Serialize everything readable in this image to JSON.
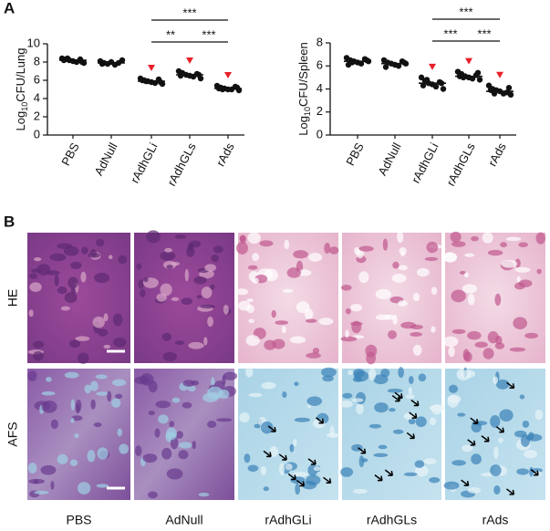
{
  "panel_labels": [
    "A",
    "B"
  ],
  "chart_data": [
    {
      "type": "dot",
      "ylabel": [
        "Log",
        "10",
        "CFU/Lung"
      ],
      "categories": [
        "PBS",
        "AdNull",
        "rAdhGLi",
        "rAdhGLs",
        "rAds"
      ],
      "values": [
        [
          8.4,
          8.3,
          8.2,
          8.1,
          8.0,
          8.3,
          7.9,
          8.2,
          8.0,
          8.4
        ],
        [
          8.1,
          7.9,
          7.8,
          8.0,
          7.7,
          7.9,
          8.2,
          7.8
        ],
        [
          6.2,
          6.0,
          5.9,
          5.8,
          5.7,
          6.1,
          5.6,
          6.0,
          5.8,
          5.9
        ],
        [
          7.0,
          6.8,
          6.6,
          6.5,
          6.4,
          6.7,
          6.2,
          6.5,
          6.6
        ],
        [
          5.4,
          5.2,
          5.1,
          5.0,
          5.0,
          5.3,
          4.9,
          5.1,
          5.2,
          5.0
        ]
      ],
      "means": [
        8.2,
        7.9,
        5.9,
        6.6,
        5.1
      ],
      "marked": [
        false,
        false,
        true,
        true,
        true
      ],
      "marker_color": "#e8202a",
      "color": "#111111",
      "ylim": [
        0,
        10
      ],
      "yticks": [
        0,
        2,
        4,
        6,
        8,
        10
      ],
      "significance": [
        {
          "between": [
            "rAdhGLi",
            "rAds"
          ],
          "label": "***"
        },
        {
          "between": [
            "rAdhGLi",
            "rAdhGLs"
          ],
          "label": "**"
        },
        {
          "between": [
            "rAdhGLs",
            "rAds"
          ],
          "label": "***"
        }
      ]
    },
    {
      "type": "dot",
      "ylabel": [
        "Log",
        "10",
        "CFU/Spleen"
      ],
      "categories": [
        "PBS",
        "AdNull",
        "rAdhGLi",
        "rAdhGLs",
        "rAds"
      ],
      "values": [
        [
          6.7,
          6.5,
          6.4,
          6.3,
          6.2,
          6.6,
          6.4,
          6.1,
          6.5,
          6.3
        ],
        [
          6.5,
          6.3,
          6.2,
          6.1,
          6.0,
          6.4,
          6.2,
          5.9,
          6.3
        ],
        [
          5.0,
          4.7,
          4.5,
          4.4,
          4.2,
          4.6,
          4.0,
          4.3,
          4.5,
          4.8
        ],
        [
          5.5,
          5.3,
          5.1,
          5.0,
          4.9,
          5.2,
          4.8,
          5.1,
          5.4,
          5.0
        ],
        [
          4.3,
          4.0,
          3.9,
          3.8,
          3.6,
          3.7,
          3.5,
          3.9,
          4.1,
          3.6
        ]
      ],
      "means": [
        6.4,
        6.2,
        4.5,
        5.1,
        3.8
      ],
      "marked": [
        false,
        false,
        true,
        true,
        true
      ],
      "marker_color": "#e8202a",
      "color": "#111111",
      "ylim": [
        0,
        8
      ],
      "yticks": [
        0,
        2,
        4,
        6,
        8
      ],
      "significance": [
        {
          "between": [
            "rAdhGLi",
            "rAds"
          ],
          "label": "***"
        },
        {
          "between": [
            "rAdhGLi",
            "rAdhGLs"
          ],
          "label": "***"
        },
        {
          "between": [
            "rAdhGLs",
            "rAds"
          ],
          "label": "***"
        }
      ]
    }
  ],
  "histology": {
    "rows": [
      "HE",
      "AFS"
    ],
    "columns": [
      "PBS",
      "AdNull",
      "rAdhGLi",
      "rAdhGLs",
      "rAds"
    ]
  }
}
